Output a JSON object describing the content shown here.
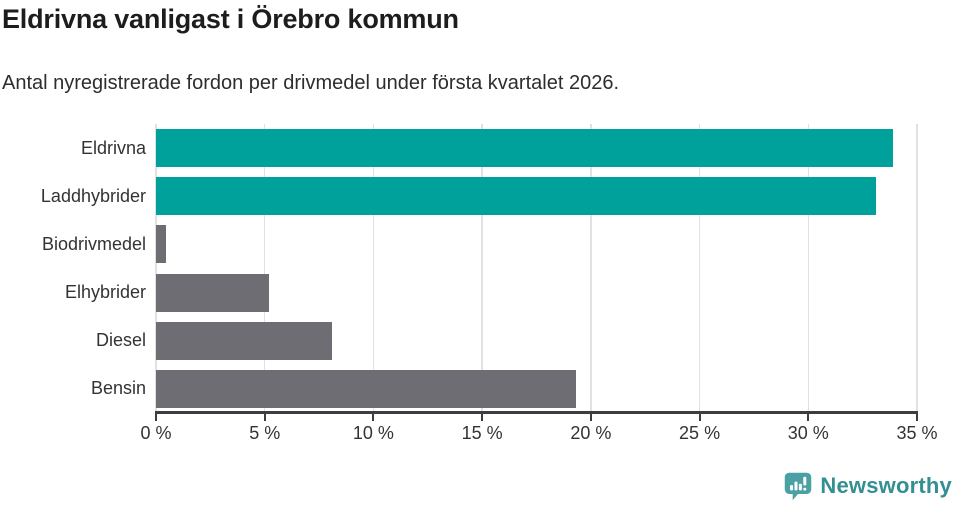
{
  "header": {
    "title": "Eldrivna vanligast i Örebro kommun",
    "subtitle": "Antal nyregistrerade fordon per drivmedel under första kvartalet 2026."
  },
  "chart_data": {
    "type": "bar",
    "orientation": "horizontal",
    "title": "Eldrivna vanligast i Örebro kommun",
    "subtitle": "Antal nyregistrerade fordon per drivmedel under första kvartalet 2026.",
    "categories": [
      "Eldrivna",
      "Laddhybrider",
      "Biodrivmedel",
      "Elhybrider",
      "Diesel",
      "Bensin"
    ],
    "values": [
      33.9,
      33.1,
      0.45,
      5.2,
      8.1,
      19.3
    ],
    "unit": "%",
    "xlim": [
      0,
      35
    ],
    "x_tick_step": 5,
    "x_tick_labels": [
      "0 %",
      "5 %",
      "10 %",
      "15 %",
      "20 %",
      "25 %",
      "30 %",
      "35 %"
    ],
    "grid": true,
    "legend": "none",
    "bar_colors": [
      "#00a19a",
      "#00a19a",
      "#6d6d73",
      "#6d6d73",
      "#6d6d73",
      "#6d6d73"
    ]
  },
  "colors": {
    "highlight_teal": "#00a19a",
    "neutral_gray": "#6d6d73",
    "gridline": "#e1e1e1",
    "axis": "#3d3d3d",
    "title_text": "#1d1d1d",
    "body_text": "#333333",
    "logo_icon": "#4aa1a4",
    "logo_text": "#348f92"
  },
  "footer": {
    "brand": "Newsworthy"
  }
}
